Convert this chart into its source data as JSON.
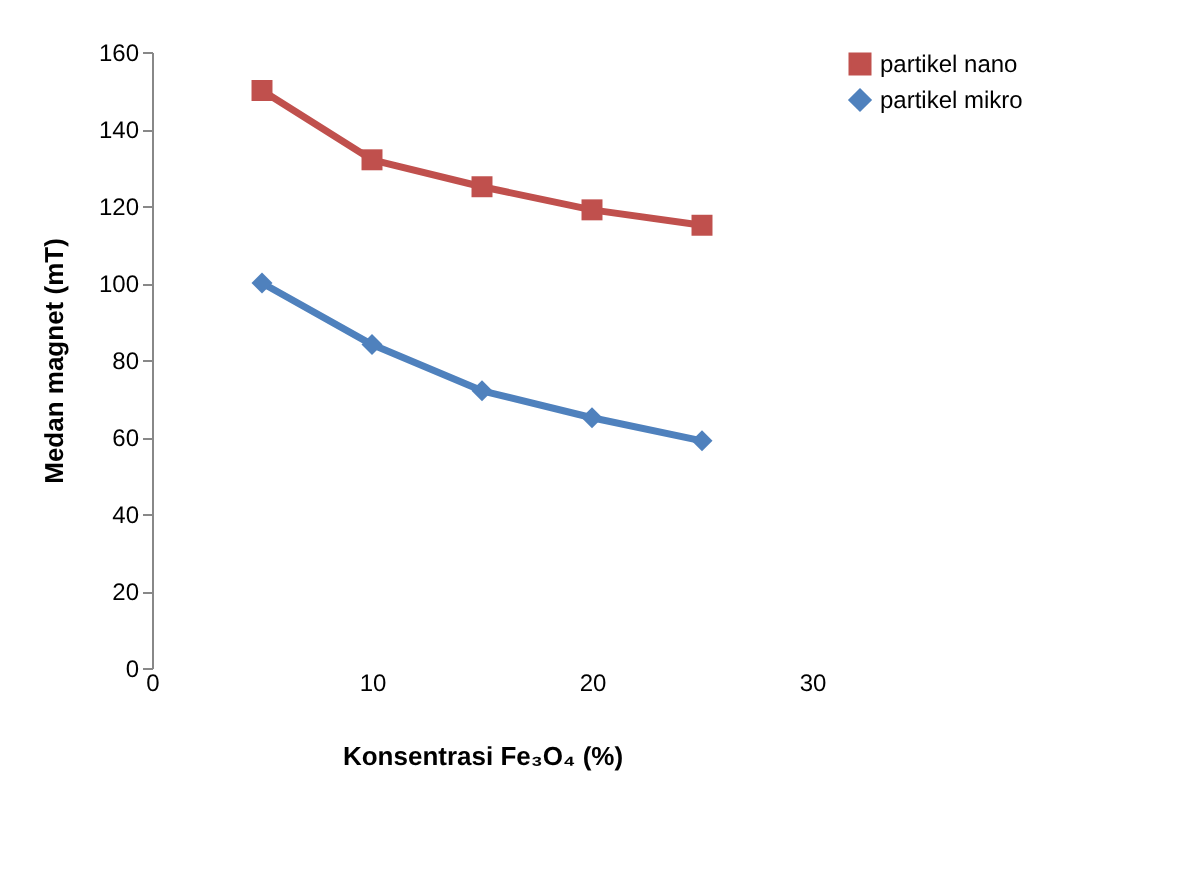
{
  "chart_data": {
    "type": "line",
    "xlabel": "Konsentrasi Fe₃O₄ (%)",
    "ylabel": "Medan magnet (mT)",
    "x": [
      5,
      10,
      15,
      20,
      25
    ],
    "series": [
      {
        "name": "partikel nano",
        "color": "#c0504d",
        "marker": "square",
        "values": [
          150,
          132,
          125,
          119,
          115
        ]
      },
      {
        "name": "partikel mikro",
        "color": "#4f81bd",
        "marker": "diamond",
        "values": [
          100,
          84,
          72,
          65,
          59
        ]
      }
    ],
    "xlim": [
      0,
      30
    ],
    "xticks": [
      0,
      10,
      20,
      30
    ],
    "ylim": [
      0,
      160
    ],
    "yticks": [
      0,
      20,
      40,
      60,
      80,
      100,
      120,
      140,
      160
    ],
    "grid": false,
    "legend": "right",
    "line_style": "solid"
  }
}
